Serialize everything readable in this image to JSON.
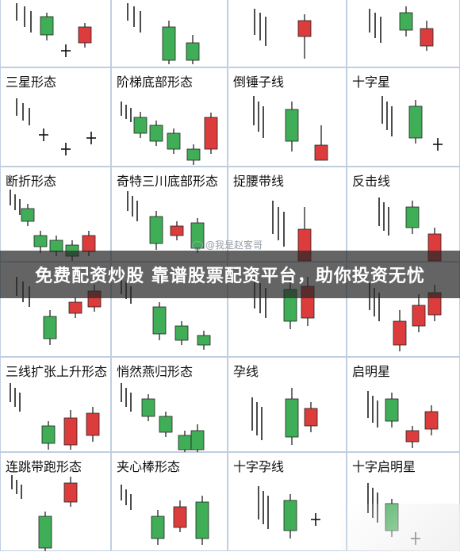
{
  "colors": {
    "up": "#dc3c3c",
    "down": "#3fae56",
    "border": "#bfcfe0",
    "wick": "#111111"
  },
  "banner": {
    "text": "免费配资炒股 靠谱股票配资平台，助你投资无忧"
  },
  "watermark": {
    "text": "@我是赵客哥"
  },
  "rows": [
    {
      "cells": [
        {
          "label": "",
          "shape": "row0a"
        },
        {
          "label": "",
          "shape": "row0b"
        },
        {
          "label": "",
          "shape": "row0c"
        },
        {
          "label": "",
          "shape": "row0d"
        }
      ]
    },
    {
      "cells": [
        {
          "label": "三星形态",
          "shape": "sanxing"
        },
        {
          "label": "阶梯底部形态",
          "shape": "jieti"
        },
        {
          "label": "倒锤子线",
          "shape": "daochui"
        },
        {
          "label": "十字星",
          "shape": "shizixing"
        }
      ]
    },
    {
      "cells": [
        {
          "label": "断折形态",
          "shape": "duanzhe"
        },
        {
          "label": "奇特三川底部形态",
          "shape": "sanchuan"
        },
        {
          "label": "捉腰带线",
          "shape": "zhuoyao"
        },
        {
          "label": "反击线",
          "shape": "fanji"
        }
      ]
    },
    {
      "cells": [
        {
          "label": "",
          "shape": "row3a"
        },
        {
          "label": "",
          "shape": "row3b"
        },
        {
          "label": "",
          "shape": "row3c"
        },
        {
          "label": "",
          "shape": "row3d"
        }
      ]
    },
    {
      "cells": [
        {
          "label": "三线扩张上升形态",
          "shape": "kuozhang"
        },
        {
          "label": "悄然燕归形态",
          "shape": "yangui"
        },
        {
          "label": "孕线",
          "shape": "yunxian"
        },
        {
          "label": "启明星",
          "shape": "qiming"
        }
      ]
    },
    {
      "cells": [
        {
          "label": "连跳带跑形态",
          "shape": "liantiao"
        },
        {
          "label": "夹心棒形态",
          "shape": "jiaxin"
        },
        {
          "label": "十字孕线",
          "shape": "shiziyun"
        },
        {
          "label": "十字启明星",
          "shape": "shiziqiming"
        }
      ]
    }
  ]
}
